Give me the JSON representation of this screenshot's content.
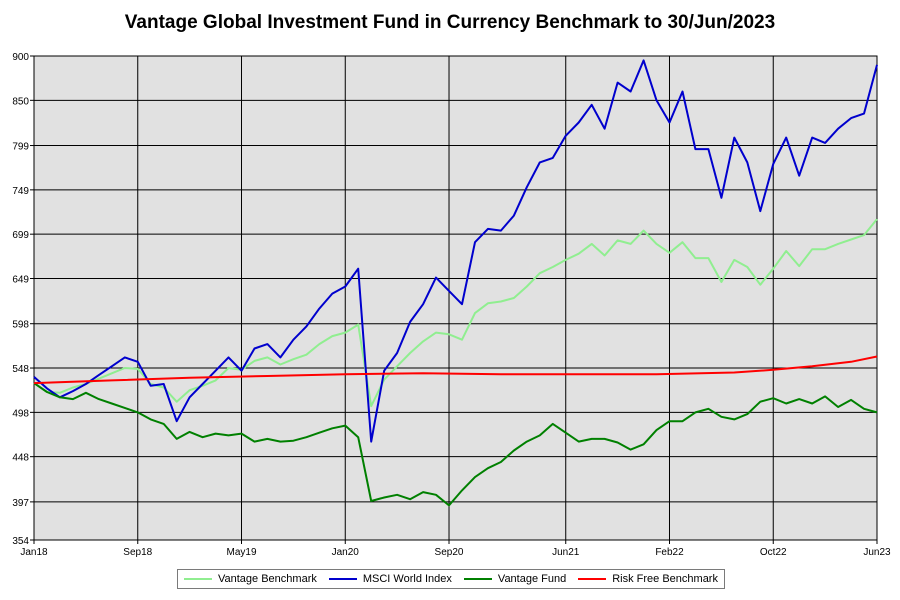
{
  "chart_data": {
    "type": "line",
    "title": "Vantage Global Investment Fund in Currency Benchmark to 30/Jun/2023",
    "xlabel": "",
    "ylabel": "",
    "ylim": [
      354,
      900
    ],
    "y_ticks": [
      354,
      397,
      448,
      498,
      548,
      598,
      649,
      699,
      749,
      799,
      850,
      900
    ],
    "x_ticks": [
      "Jan18",
      "Sep18",
      "May19",
      "Jan20",
      "Sep20",
      "Jun21",
      "Feb22",
      "Oct22",
      "Jun23"
    ],
    "x_range": [
      "2018-01",
      "2023-06"
    ],
    "grid": true,
    "legend_position": "bottom",
    "series": [
      {
        "name": "Vantage Benchmark",
        "color": "#90ee90",
        "points": [
          [
            "2018-01",
            531
          ],
          [
            "2018-02",
            521
          ],
          [
            "2018-03",
            520
          ],
          [
            "2018-04",
            526
          ],
          [
            "2018-05",
            530
          ],
          [
            "2018-06",
            536
          ],
          [
            "2018-07",
            542
          ],
          [
            "2018-08",
            548
          ],
          [
            "2018-09",
            547
          ],
          [
            "2018-10",
            530
          ],
          [
            "2018-11",
            526
          ],
          [
            "2018-12",
            510
          ],
          [
            "2019-01",
            523
          ],
          [
            "2019-02",
            528
          ],
          [
            "2019-03",
            534
          ],
          [
            "2019-04",
            548
          ],
          [
            "2019-05",
            546
          ],
          [
            "2019-06",
            556
          ],
          [
            "2019-07",
            560
          ],
          [
            "2019-08",
            552
          ],
          [
            "2019-09",
            558
          ],
          [
            "2019-10",
            563
          ],
          [
            "2019-11",
            575
          ],
          [
            "2019-12",
            584
          ],
          [
            "2020-01",
            588
          ],
          [
            "2020-02",
            597
          ],
          [
            "2020-03",
            505
          ],
          [
            "2020-04",
            535
          ],
          [
            "2020-05",
            550
          ],
          [
            "2020-06",
            565
          ],
          [
            "2020-07",
            578
          ],
          [
            "2020-08",
            588
          ],
          [
            "2020-09",
            586
          ],
          [
            "2020-10",
            580
          ],
          [
            "2020-11",
            610
          ],
          [
            "2020-12",
            621
          ],
          [
            "2021-01",
            623
          ],
          [
            "2021-02",
            627
          ],
          [
            "2021-03",
            640
          ],
          [
            "2021-04",
            655
          ],
          [
            "2021-05",
            662
          ],
          [
            "2021-06",
            670
          ],
          [
            "2021-07",
            677
          ],
          [
            "2021-08",
            688
          ],
          [
            "2021-09",
            675
          ],
          [
            "2021-10",
            692
          ],
          [
            "2021-11",
            688
          ],
          [
            "2021-12",
            703
          ],
          [
            "2022-01",
            688
          ],
          [
            "2022-02",
            678
          ],
          [
            "2022-03",
            690
          ],
          [
            "2022-04",
            672
          ],
          [
            "2022-05",
            672
          ],
          [
            "2022-06",
            645
          ],
          [
            "2022-07",
            670
          ],
          [
            "2022-08",
            662
          ],
          [
            "2022-09",
            642
          ],
          [
            "2022-10",
            660
          ],
          [
            "2022-11",
            680
          ],
          [
            "2022-12",
            663
          ],
          [
            "2023-01",
            682
          ],
          [
            "2023-02",
            682
          ],
          [
            "2023-03",
            688
          ],
          [
            "2023-04",
            693
          ],
          [
            "2023-05",
            698
          ],
          [
            "2023-06",
            716
          ]
        ]
      },
      {
        "name": "MSCI World Index",
        "color": "#0000cd",
        "points": [
          [
            "2018-01",
            538
          ],
          [
            "2018-02",
            525
          ],
          [
            "2018-03",
            515
          ],
          [
            "2018-04",
            522
          ],
          [
            "2018-05",
            530
          ],
          [
            "2018-06",
            540
          ],
          [
            "2018-07",
            550
          ],
          [
            "2018-08",
            560
          ],
          [
            "2018-09",
            555
          ],
          [
            "2018-10",
            528
          ],
          [
            "2018-11",
            530
          ],
          [
            "2018-12",
            488
          ],
          [
            "2019-01",
            515
          ],
          [
            "2019-02",
            530
          ],
          [
            "2019-03",
            545
          ],
          [
            "2019-04",
            560
          ],
          [
            "2019-05",
            545
          ],
          [
            "2019-06",
            570
          ],
          [
            "2019-07",
            575
          ],
          [
            "2019-08",
            560
          ],
          [
            "2019-09",
            580
          ],
          [
            "2019-10",
            595
          ],
          [
            "2019-11",
            615
          ],
          [
            "2019-12",
            632
          ],
          [
            "2020-01",
            640
          ],
          [
            "2020-02",
            660
          ],
          [
            "2020-03",
            465
          ],
          [
            "2020-04",
            545
          ],
          [
            "2020-05",
            565
          ],
          [
            "2020-06",
            600
          ],
          [
            "2020-07",
            620
          ],
          [
            "2020-08",
            650
          ],
          [
            "2020-09",
            635
          ],
          [
            "2020-10",
            620
          ],
          [
            "2020-11",
            690
          ],
          [
            "2020-12",
            705
          ],
          [
            "2021-01",
            703
          ],
          [
            "2021-02",
            720
          ],
          [
            "2021-03",
            752
          ],
          [
            "2021-04",
            780
          ],
          [
            "2021-05",
            785
          ],
          [
            "2021-06",
            810
          ],
          [
            "2021-07",
            825
          ],
          [
            "2021-08",
            845
          ],
          [
            "2021-09",
            818
          ],
          [
            "2021-10",
            870
          ],
          [
            "2021-11",
            860
          ],
          [
            "2021-12",
            895
          ],
          [
            "2022-01",
            850
          ],
          [
            "2022-02",
            825
          ],
          [
            "2022-03",
            860
          ],
          [
            "2022-04",
            795
          ],
          [
            "2022-05",
            795
          ],
          [
            "2022-06",
            740
          ],
          [
            "2022-07",
            808
          ],
          [
            "2022-08",
            780
          ],
          [
            "2022-09",
            725
          ],
          [
            "2022-10",
            778
          ],
          [
            "2022-11",
            808
          ],
          [
            "2022-12",
            765
          ],
          [
            "2023-01",
            808
          ],
          [
            "2023-02",
            802
          ],
          [
            "2023-03",
            818
          ],
          [
            "2023-04",
            830
          ],
          [
            "2023-05",
            835
          ],
          [
            "2023-06",
            890
          ]
        ]
      },
      {
        "name": "Vantage Fund",
        "color": "#008000",
        "points": [
          [
            "2018-01",
            531
          ],
          [
            "2018-02",
            521
          ],
          [
            "2018-03",
            515
          ],
          [
            "2018-04",
            513
          ],
          [
            "2018-05",
            520
          ],
          [
            "2018-06",
            513
          ],
          [
            "2018-07",
            508
          ],
          [
            "2018-08",
            503
          ],
          [
            "2018-09",
            498
          ],
          [
            "2018-10",
            490
          ],
          [
            "2018-11",
            485
          ],
          [
            "2018-12",
            468
          ],
          [
            "2019-01",
            476
          ],
          [
            "2019-02",
            470
          ],
          [
            "2019-03",
            474
          ],
          [
            "2019-04",
            472
          ],
          [
            "2019-05",
            474
          ],
          [
            "2019-06",
            465
          ],
          [
            "2019-07",
            468
          ],
          [
            "2019-08",
            465
          ],
          [
            "2019-09",
            466
          ],
          [
            "2019-10",
            470
          ],
          [
            "2019-11",
            475
          ],
          [
            "2019-12",
            480
          ],
          [
            "2020-01",
            483
          ],
          [
            "2020-02",
            470
          ],
          [
            "2020-03",
            398
          ],
          [
            "2020-04",
            402
          ],
          [
            "2020-05",
            405
          ],
          [
            "2020-06",
            400
          ],
          [
            "2020-07",
            408
          ],
          [
            "2020-08",
            405
          ],
          [
            "2020-09",
            393
          ],
          [
            "2020-10",
            410
          ],
          [
            "2020-11",
            425
          ],
          [
            "2020-12",
            435
          ],
          [
            "2021-01",
            442
          ],
          [
            "2021-02",
            455
          ],
          [
            "2021-03",
            465
          ],
          [
            "2021-04",
            472
          ],
          [
            "2021-05",
            485
          ],
          [
            "2021-06",
            475
          ],
          [
            "2021-07",
            465
          ],
          [
            "2021-08",
            468
          ],
          [
            "2021-09",
            468
          ],
          [
            "2021-10",
            464
          ],
          [
            "2021-11",
            456
          ],
          [
            "2021-12",
            462
          ],
          [
            "2022-01",
            478
          ],
          [
            "2022-02",
            488
          ],
          [
            "2022-03",
            488
          ],
          [
            "2022-04",
            498
          ],
          [
            "2022-05",
            502
          ],
          [
            "2022-06",
            493
          ],
          [
            "2022-07",
            490
          ],
          [
            "2022-08",
            496
          ],
          [
            "2022-09",
            510
          ],
          [
            "2022-10",
            514
          ],
          [
            "2022-11",
            508
          ],
          [
            "2022-12",
            513
          ],
          [
            "2023-01",
            508
          ],
          [
            "2023-02",
            516
          ],
          [
            "2023-03",
            504
          ],
          [
            "2023-04",
            512
          ],
          [
            "2023-05",
            502
          ],
          [
            "2023-06",
            498
          ]
        ]
      },
      {
        "name": "Risk Free Benchmark",
        "color": "#ff0000",
        "points": [
          [
            "2018-01",
            531
          ],
          [
            "2018-07",
            534
          ],
          [
            "2019-01",
            537
          ],
          [
            "2019-07",
            539
          ],
          [
            "2020-01",
            541
          ],
          [
            "2020-07",
            542
          ],
          [
            "2021-01",
            541
          ],
          [
            "2021-07",
            541
          ],
          [
            "2022-01",
            541
          ],
          [
            "2022-07",
            543
          ],
          [
            "2022-10",
            546
          ],
          [
            "2023-01",
            550
          ],
          [
            "2023-04",
            555
          ],
          [
            "2023-06",
            561
          ]
        ]
      }
    ]
  }
}
